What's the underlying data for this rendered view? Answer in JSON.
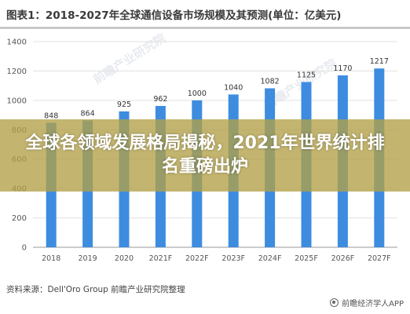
{
  "chart_data": {
    "type": "bar",
    "title": "图表1：2018-2027年全球通信设备市场规模及其预测(单位：亿美元)",
    "categories": [
      "2018",
      "2019",
      "2020",
      "2021F",
      "2022F",
      "2023F",
      "2024F",
      "2025F",
      "2026F",
      "2027F"
    ],
    "values": [
      848,
      864,
      925,
      962,
      1000,
      1040,
      1082,
      1125,
      1170,
      1217
    ],
    "ylim": [
      0,
      1400
    ],
    "yticks": [
      0,
      200,
      400,
      600,
      800,
      1000,
      1200,
      1400
    ],
    "bar_color": "#3d8ce0",
    "grid": true
  },
  "overlay": {
    "headline": "全球各领域发展格局揭秘，2021年世界统计排名重磅出炉"
  },
  "source": "资料来源：Dell'Oro Group 前瞻产业研究院整理",
  "brand": "前瞻经济学人APP",
  "watermarks": [
    "前瞻产业研究院",
    "前瞻产业研究院"
  ]
}
